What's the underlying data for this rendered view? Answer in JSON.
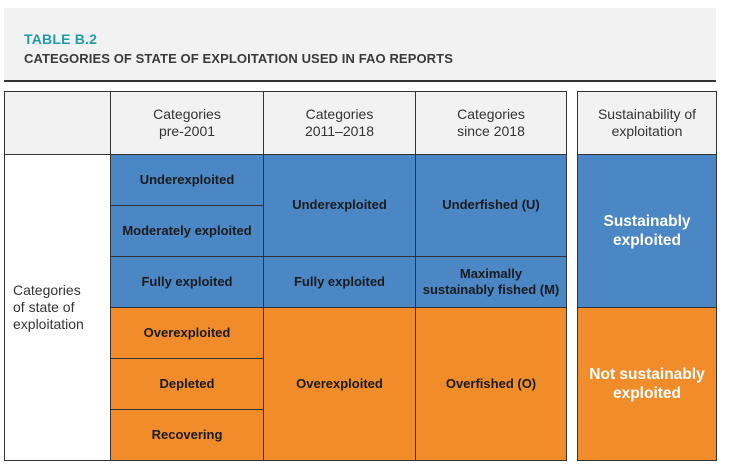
{
  "header": {
    "table_label": "TABLE B.2",
    "title": "CATEGORIES OF STATE OF EXPLOITATION USED IN FAO REPORTS"
  },
  "table": {
    "columns": {
      "pre2001": "Categories\npre-2001",
      "y2011_2018": "Categories\n2011–2018",
      "since2018": "Categories\nsince 2018",
      "sustainability": "Sustainability of\nexploitation"
    },
    "row_label": "Categories\nof state of\nexploitation",
    "pre2001": [
      "Underexploited",
      "Moderately exploited",
      "Fully exploited",
      "Overexploited",
      "Depleted",
      "Recovering"
    ],
    "y2011_2018": [
      "Underexploited",
      "Fully exploited",
      "Overexploited"
    ],
    "since2018": [
      "Underfished (U)",
      "Maximally\nsustainably fished (M)",
      "Overfished (O)"
    ],
    "sustainability": [
      "Sustainably\nexploited",
      "Not sustainably\nexploited"
    ]
  },
  "colors": {
    "sustainable": "#4a87c4",
    "not_sustainable": "#f08c2a",
    "accent": "#1f9bab"
  }
}
